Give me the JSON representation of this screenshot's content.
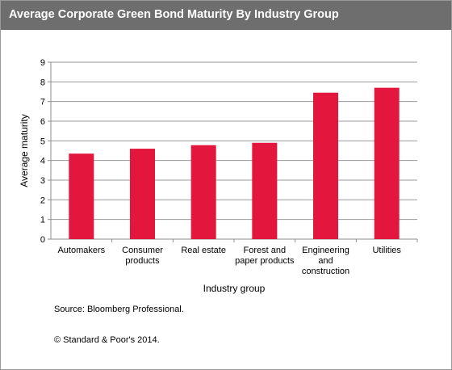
{
  "chart_data": {
    "type": "bar",
    "title": "Average Corporate Green Bond Maturity By Industry Group",
    "xlabel": "Industry group",
    "ylabel": "Average maturity",
    "categories": [
      "Automakers",
      "Consumer products",
      "Real estate",
      "Forest and paper products",
      "Engineering and construction",
      "Utilities"
    ],
    "category_lines": [
      [
        "Automakers"
      ],
      [
        "Consumer",
        "products"
      ],
      [
        "Real estate"
      ],
      [
        "Forest and",
        "paper products"
      ],
      [
        "Engineering",
        "and",
        "construction"
      ],
      [
        "Utilities"
      ]
    ],
    "values": [
      4.35,
      4.6,
      4.78,
      4.9,
      7.45,
      7.7
    ],
    "ylim": [
      0,
      9
    ],
    "yticks": [
      "0",
      "1",
      "2",
      "3",
      "4",
      "5",
      "6",
      "7",
      "8",
      "9"
    ],
    "grid": true,
    "legend": "none",
    "bar_color": "#e3173e"
  },
  "footer": {
    "source": "Source: Bloomberg Professional.",
    "copyright": "© Standard & Poor's 2014."
  },
  "colors": {
    "title_bar": "#6e6e6e",
    "gridline": "#9a9a9a",
    "axis": "#8c8c8c"
  }
}
